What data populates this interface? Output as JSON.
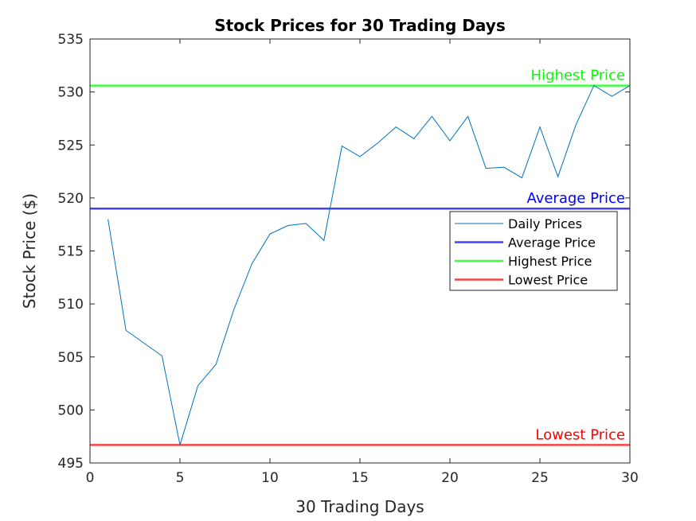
{
  "chart_data": {
    "type": "line",
    "title": "Stock Prices for 30 Trading Days",
    "xlabel": "30 Trading Days",
    "ylabel": "Stock Price ($)",
    "xlim": [
      0,
      30
    ],
    "ylim": [
      495,
      535
    ],
    "xticks": [
      0,
      5,
      10,
      15,
      20,
      25,
      30
    ],
    "yticks": [
      495,
      500,
      505,
      510,
      515,
      520,
      525,
      530,
      535
    ],
    "grid": false,
    "legend_position": "inside-right",
    "series": [
      {
        "name": "Daily Prices",
        "color": "#0072BD",
        "x": [
          1,
          2,
          3,
          4,
          5,
          6,
          7,
          8,
          9,
          10,
          11,
          12,
          13,
          14,
          15,
          16,
          17,
          18,
          19,
          20,
          21,
          22,
          23,
          24,
          25,
          26,
          27,
          28,
          29,
          30
        ],
        "y": [
          518.0,
          507.5,
          506.3,
          505.1,
          496.7,
          502.3,
          504.3,
          509.5,
          513.8,
          516.6,
          517.4,
          517.6,
          516.0,
          524.9,
          523.9,
          525.2,
          526.7,
          525.6,
          527.7,
          525.4,
          527.7,
          522.8,
          522.9,
          521.9,
          526.7,
          522.0,
          526.9,
          530.6,
          529.6,
          530.6
        ]
      },
      {
        "name": "Average Price",
        "color": "#0000FF",
        "value": 519.0
      },
      {
        "name": "Highest Price",
        "color": "#00FF00",
        "value": 530.6
      },
      {
        "name": "Lowest Price",
        "color": "#FF0000",
        "value": 496.7
      }
    ],
    "annotations": [
      {
        "text": "Highest Price",
        "color": "#00FF00",
        "value": 530.6
      },
      {
        "text": "Average Price",
        "color": "#0000FF",
        "value": 519.0
      },
      {
        "text": "Lowest Price",
        "color": "#FF0000",
        "value": 496.7
      }
    ]
  }
}
